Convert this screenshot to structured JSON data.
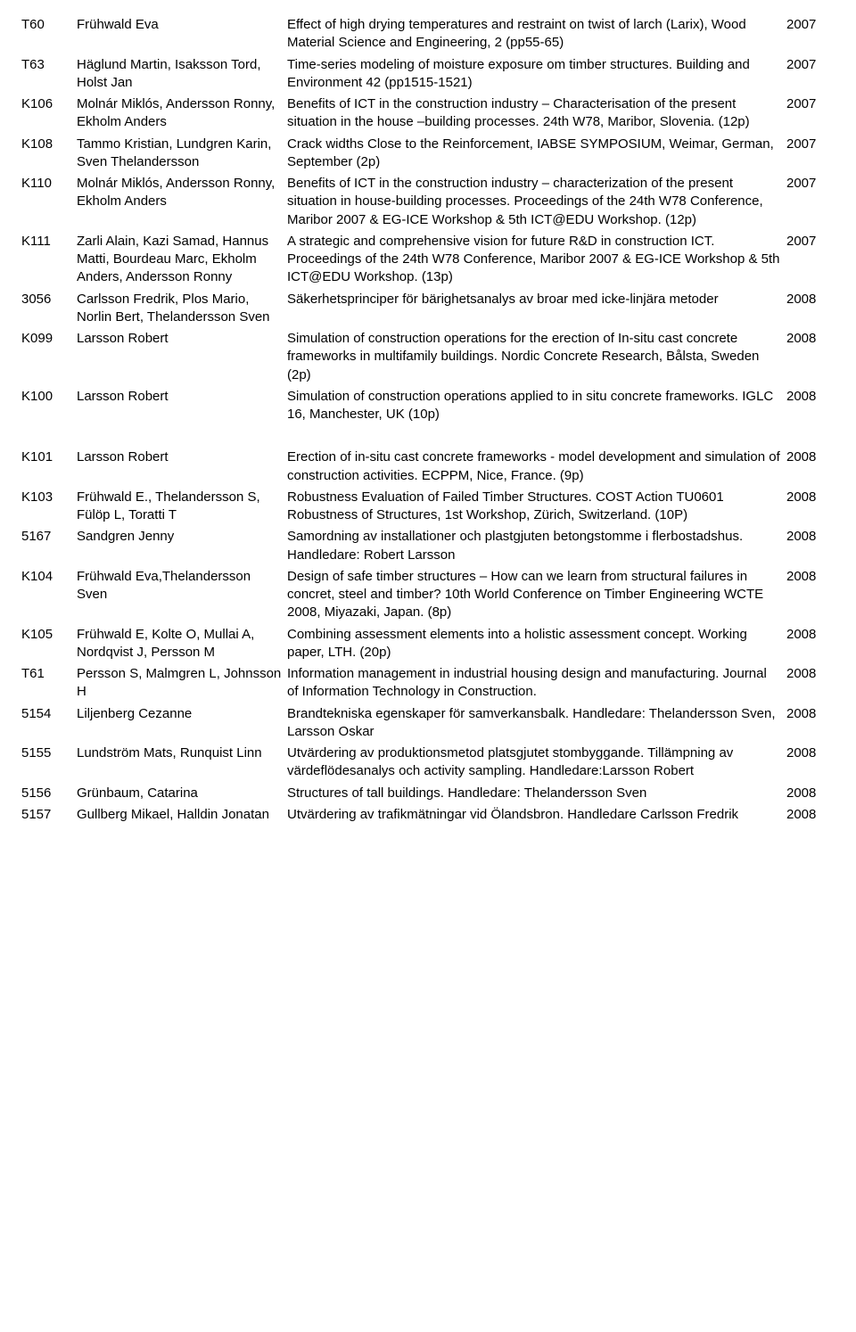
{
  "group1": [
    {
      "code": "T60",
      "authors": "Frühwald Eva",
      "desc": "Effect of high drying temperatures and restraint on twist of larch (Larix), Wood Material Science and Engineering, 2 (pp55-65)",
      "year": "2007"
    },
    {
      "code": "T63",
      "authors": "Häglund Martin, Isaksson Tord, Holst Jan",
      "desc": "Time-series modeling of moisture exposure om timber structures. Building and Environment 42 (pp1515-1521)",
      "year": "2007"
    },
    {
      "code": "K106",
      "authors": "Molnár Miklós, Andersson Ronny, Ekholm Anders",
      "desc": "Benefits of ICT in the construction industry – Characterisation of the present situation in the house –building processes. 24th W78, Maribor, Slovenia. (12p)",
      "year": "2007"
    },
    {
      "code": "K108",
      "authors": "Tammo Kristian, Lundgren Karin, Sven Thelandersson",
      "desc": "Crack widths Close to the Reinforcement, IABSE SYMPOSIUM, Weimar, German, September (2p)",
      "year": "2007"
    },
    {
      "code": "K110",
      "authors": "Molnár Miklós, Andersson Ronny, Ekholm Anders",
      "desc": "Benefits of ICT in the construction industry – characterization of the present situation in house-building processes. Proceedings of the 24th W78 Conference, Maribor 2007 & EG-ICE Workshop & 5th ICT@EDU Workshop. (12p)",
      "year": "2007"
    },
    {
      "code": "K111",
      "authors": "Zarli Alain, Kazi Samad, Hannus Matti, Bourdeau Marc, Ekholm Anders, Andersson Ronny",
      "desc": "A strategic and comprehensive vision for future R&D in construction ICT. Proceedings of the 24th W78 Conference, Maribor 2007 & EG-ICE Workshop & 5th ICT@EDU Workshop. (13p)",
      "year": "2007"
    },
    {
      "code": "3056",
      "authors": "Carlsson Fredrik, Plos Mario, Norlin Bert, Thelandersson Sven",
      "desc": "Säkerhetsprinciper för bärighetsanalys av broar med icke-linjära metoder",
      "year": "2008"
    },
    {
      "code": "K099",
      "authors": "Larsson Robert",
      "desc": "Simulation of construction operations for the erection of In-situ cast concrete frameworks in multifamily buildings. Nordic Concrete Research, Bålsta, Sweden (2p)",
      "year": "2008"
    },
    {
      "code": "K100",
      "authors": "Larsson Robert",
      "desc": "Simulation of construction operations applied to in situ concrete frameworks. IGLC 16, Manchester, UK (10p)",
      "year": "2008"
    }
  ],
  "group2": [
    {
      "code": "K101",
      "authors": "Larsson Robert",
      "desc": "Erection of in-situ cast concrete frameworks - model development and simulation of construction activities. ECPPM, Nice, France. (9p)",
      "year": "2008"
    },
    {
      "code": "K103",
      "authors": "Frühwald E., Thelandersson S, Fülöp L, Toratti T",
      "desc": "Robustness Evaluation of Failed Timber Structures. COST Action TU0601 Robustness of Structures, 1st Workshop, Zürich, Switzerland. (10P)",
      "year": "2008"
    },
    {
      "code": "5167",
      "authors": "Sandgren Jenny",
      "desc": "Samordning av installationer och plastgjuten betongstomme i flerbostadshus. Handledare: Robert Larsson",
      "year": "2008"
    },
    {
      "code": "K104",
      "authors": "Frühwald Eva,Thelandersson Sven",
      "desc": "Design of safe timber structures – How can we learn from structural failures in concret, steel and timber? 10th World Conference on Timber Engineering WCTE 2008, Miyazaki, Japan. (8p)",
      "year": "2008"
    },
    {
      "code": "K105",
      "authors": "Frühwald E, Kolte O, Mullai A, Nordqvist J, Persson M",
      "desc": "Combining assessment elements into a holistic assessment concept. Working paper, LTH. (20p)",
      "year": "2008"
    },
    {
      "code": "T61",
      "authors": "Persson S, Malmgren L, Johnsson H",
      "desc": "Information management in industrial housing design and manufacturing. Journal of Information Technology in Construction.",
      "year": "2008"
    },
    {
      "code": "5154",
      "authors": "Liljenberg Cezanne",
      "desc": "Brandtekniska egenskaper för samverkansbalk. Handledare: Thelandersson Sven, Larsson Oskar",
      "year": "2008"
    },
    {
      "code": "5155",
      "authors": "Lundström Mats, Runquist Linn",
      "desc": "Utvärdering av produktionsmetod platsgjutet stombyggande. Tillämpning av värdeflödesanalys och activity sampling. Handledare:Larsson Robert",
      "year": "2008"
    },
    {
      "code": "5156",
      "authors": "Grünbaum, Catarina",
      "desc": "Structures of tall buildings. Handledare: Thelandersson Sven",
      "year": "2008"
    },
    {
      "code": "5157",
      "authors": "Gullberg Mikael, Halldin Jonatan",
      "desc": "Utvärdering av trafikmätningar vid Ölandsbron. Handledare Carlsson Fredrik",
      "year": "2008"
    }
  ]
}
